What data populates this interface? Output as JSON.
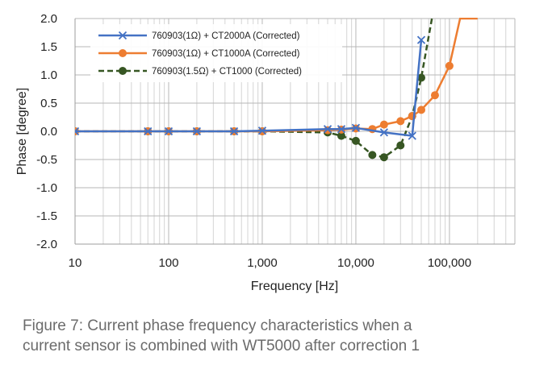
{
  "chart_data": {
    "type": "line",
    "xlabel": "Frequency [Hz]",
    "ylabel": "Phase [degree]",
    "xscale": "log",
    "xlim": [
      10,
      500000
    ],
    "ylim": [
      -2.0,
      2.0
    ],
    "grid": true,
    "legend_position": "top-left",
    "xticks": [
      10,
      100,
      1000,
      10000,
      100000
    ],
    "xtick_labels": [
      "10",
      "100",
      "1,000",
      "10,000",
      "100,000"
    ],
    "yticks": [
      2.0,
      1.5,
      1.0,
      0.5,
      0.0,
      -0.5,
      -1.0,
      -1.5,
      -2.0
    ],
    "ytick_labels": [
      "2.0",
      "1.5",
      "1.0",
      "0.5",
      "0.0",
      "-0.5",
      "-1.0",
      "-1.5",
      "-2.0"
    ],
    "series": [
      {
        "name": "760903(1Ω) + CT2000A (Corrected)",
        "color": "#4472c4",
        "marker": "x",
        "dash": "solid",
        "x": [
          10,
          60,
          100,
          200,
          500,
          1000,
          5000,
          7000,
          10000,
          20000,
          40000,
          50000
        ],
        "y": [
          0.0,
          0.0,
          0.0,
          0.0,
          0.0,
          0.01,
          0.04,
          0.04,
          0.06,
          -0.02,
          -0.08,
          1.62
        ]
      },
      {
        "name": "760903(1Ω) + CT1000A (Corrected)",
        "color": "#ed7d31",
        "marker": "circle",
        "dash": "solid",
        "x": [
          10,
          60,
          100,
          200,
          500,
          1000,
          5000,
          7000,
          10000,
          15000,
          20000,
          30000,
          40000,
          50000,
          70000,
          100000,
          130000,
          200000
        ],
        "y": [
          0.0,
          0.0,
          0.0,
          0.0,
          0.0,
          0.0,
          0.02,
          0.03,
          0.05,
          0.04,
          0.12,
          0.18,
          0.27,
          0.38,
          0.64,
          1.16,
          2.0,
          2.0
        ]
      },
      {
        "name": "760903(1.5Ω) + CT1000 (Corrected)",
        "color": "#375623",
        "marker": "circle",
        "dash": "dashed",
        "x": [
          10,
          60,
          100,
          200,
          500,
          1000,
          5000,
          7000,
          10000,
          15000,
          20000,
          30000,
          40000,
          50000,
          65000
        ],
        "y": [
          0.0,
          0.0,
          0.0,
          0.0,
          0.0,
          0.0,
          -0.02,
          -0.08,
          -0.17,
          -0.42,
          -0.46,
          -0.25,
          0.27,
          0.95,
          2.0
        ]
      }
    ]
  },
  "caption": {
    "line1": "Figure 7: Current phase frequency characteristics when a",
    "line2": "current sensor is combined with WT5000 after correction 1"
  }
}
